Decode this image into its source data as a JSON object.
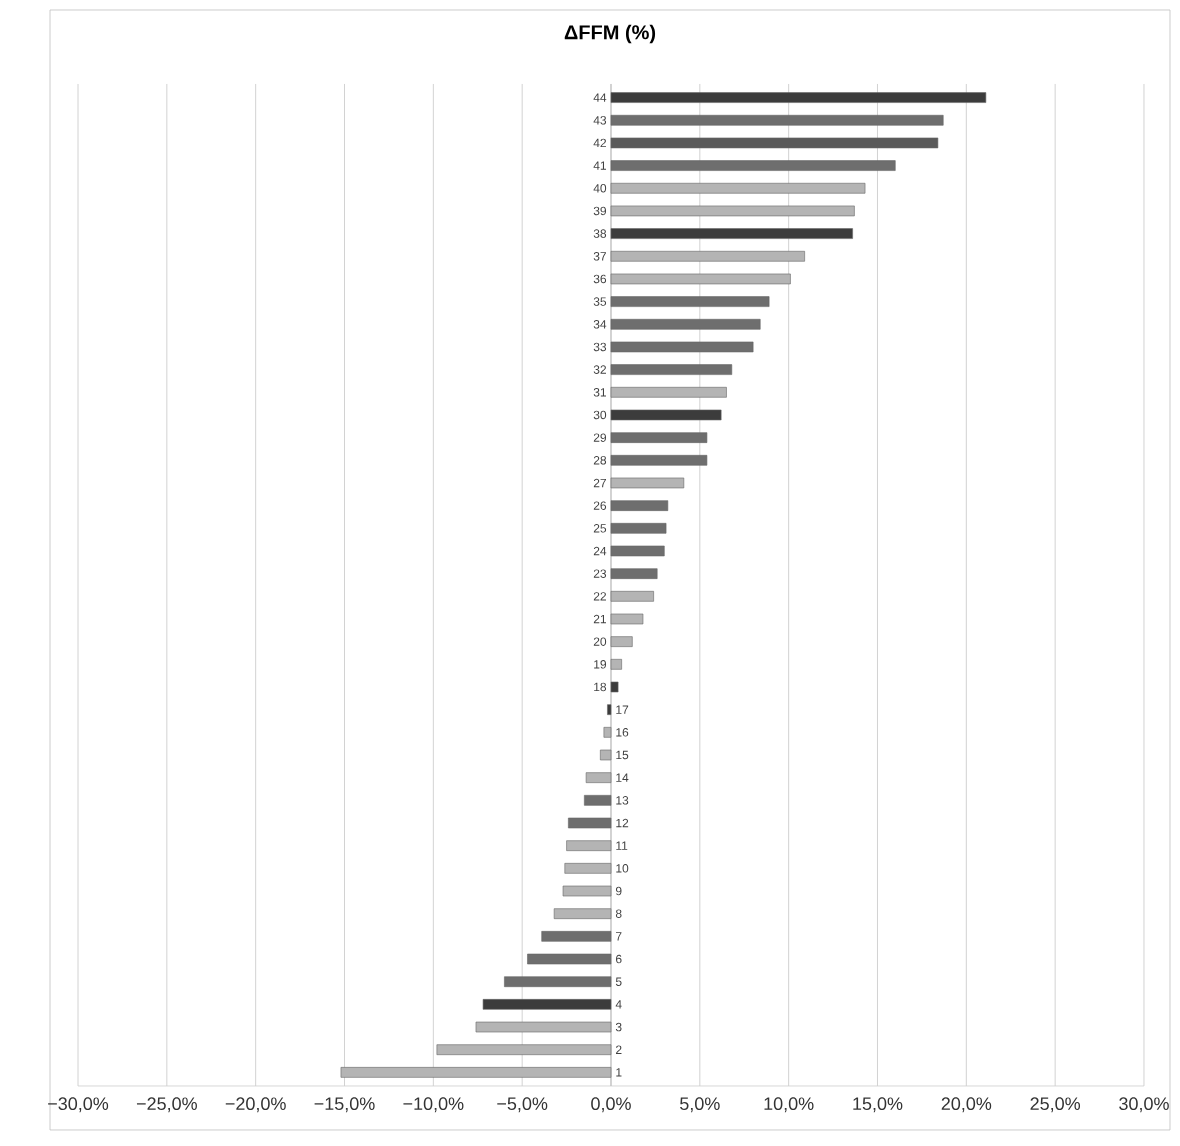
{
  "chart_data": {
    "type": "bar",
    "orientation": "horizontal",
    "title": "ΔFFM (%)",
    "categories": [
      "44",
      "43",
      "42",
      "41",
      "40",
      "39",
      "38",
      "37",
      "36",
      "35",
      "34",
      "33",
      "32",
      "31",
      "30",
      "29",
      "28",
      "27",
      "26",
      "25",
      "24",
      "23",
      "22",
      "21",
      "20",
      "19",
      "18",
      "17",
      "16",
      "15",
      "14",
      "13",
      "12",
      "11",
      "10",
      "9",
      "8",
      "7",
      "6",
      "5",
      "4",
      "3",
      "2",
      "1"
    ],
    "values": [
      21.1,
      18.7,
      18.4,
      16.0,
      14.3,
      13.7,
      13.6,
      10.9,
      10.1,
      8.9,
      8.4,
      8.0,
      6.8,
      6.5,
      6.2,
      5.4,
      5.4,
      4.1,
      3.2,
      3.1,
      3.0,
      2.6,
      2.4,
      1.8,
      1.2,
      0.6,
      0.4,
      -0.2,
      -0.4,
      -0.6,
      -1.4,
      -1.5,
      -2.4,
      -2.5,
      -2.6,
      -2.7,
      -3.2,
      -3.9,
      -4.7,
      -6.0,
      -7.2,
      -7.6,
      -9.8,
      -15.2
    ],
    "colors": [
      "#3c3c3c",
      "#6e6e6e",
      "#5a5a5a",
      "#6e6e6e",
      "#b4b4b4",
      "#b4b4b4",
      "#3c3c3c",
      "#b4b4b4",
      "#b4b4b4",
      "#6e6e6e",
      "#6e6e6e",
      "#6e6e6e",
      "#6e6e6e",
      "#b4b4b4",
      "#3c3c3c",
      "#6e6e6e",
      "#6e6e6e",
      "#b4b4b4",
      "#6e6e6e",
      "#6e6e6e",
      "#6e6e6e",
      "#6e6e6e",
      "#b4b4b4",
      "#b4b4b4",
      "#b4b4b4",
      "#b4b4b4",
      "#3c3c3c",
      "#3c3c3c",
      "#b4b4b4",
      "#b4b4b4",
      "#b4b4b4",
      "#6e6e6e",
      "#6e6e6e",
      "#b4b4b4",
      "#b4b4b4",
      "#b4b4b4",
      "#b4b4b4",
      "#6e6e6e",
      "#6e6e6e",
      "#6e6e6e",
      "#3c3c3c",
      "#b4b4b4",
      "#b4b4b4",
      "#b4b4b4"
    ],
    "xlim": [
      -30,
      30
    ],
    "xticks": [
      {
        "value": -30,
        "label": "−30,0%"
      },
      {
        "value": -25,
        "label": "−25,0%"
      },
      {
        "value": -20,
        "label": "−20,0%"
      },
      {
        "value": -15,
        "label": "−15,0%"
      },
      {
        "value": -10,
        "label": "−10,0%"
      },
      {
        "value": -5,
        "label": "−5,0%"
      },
      {
        "value": 0,
        "label": "0,0%"
      },
      {
        "value": 5,
        "label": "5,0%"
      },
      {
        "value": 10,
        "label": "10,0%"
      },
      {
        "value": 15,
        "label": "15,0%"
      },
      {
        "value": 20,
        "label": "20,0%"
      },
      {
        "value": 25,
        "label": "25,0%"
      },
      {
        "value": 30,
        "label": "30,0%"
      }
    ],
    "grid": "x"
  }
}
